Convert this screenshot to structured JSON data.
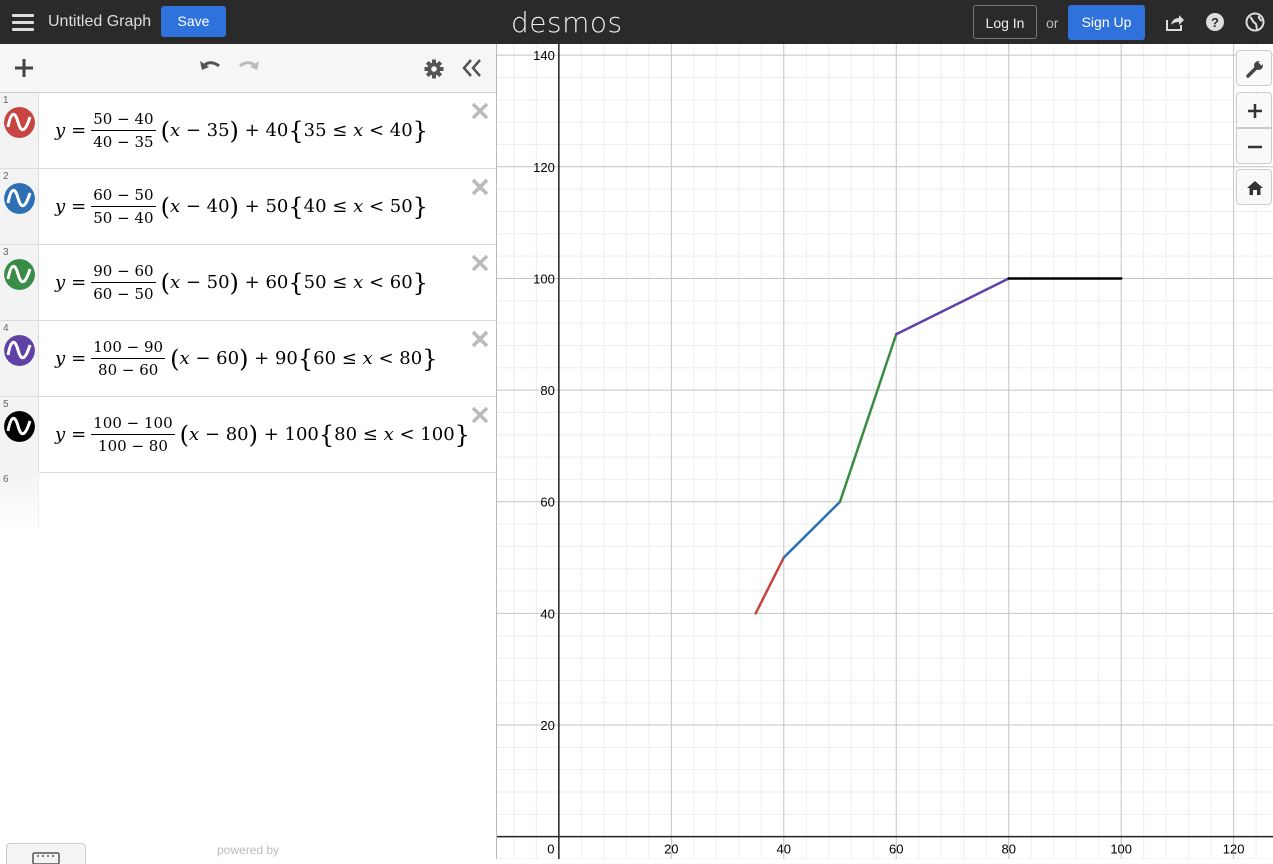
{
  "topbar": {
    "title": "Untitled Graph",
    "save_label": "Save",
    "logo": "desmos",
    "login_label": "Log In",
    "or_text": "or",
    "signup_label": "Sign Up"
  },
  "expressions": [
    {
      "index": "1",
      "color": "#c74440",
      "n1": "50",
      "n2": "40",
      "d1": "40",
      "d2": "35",
      "shift": "35",
      "offset": "40",
      "lo": "35",
      "hi": "40"
    },
    {
      "index": "2",
      "color": "#2d70b3",
      "n1": "60",
      "n2": "50",
      "d1": "50",
      "d2": "40",
      "shift": "40",
      "offset": "50",
      "lo": "40",
      "hi": "50"
    },
    {
      "index": "3",
      "color": "#388c46",
      "n1": "90",
      "n2": "60",
      "d1": "60",
      "d2": "50",
      "shift": "50",
      "offset": "60",
      "lo": "50",
      "hi": "60"
    },
    {
      "index": "4",
      "color": "#6042a6",
      "n1": "100",
      "n2": "90",
      "d1": "80",
      "d2": "60",
      "shift": "60",
      "offset": "90",
      "lo": "60",
      "hi": "80"
    },
    {
      "index": "5",
      "color": "#000000",
      "n1": "100",
      "n2": "100",
      "d1": "100",
      "d2": "80",
      "shift": "80",
      "offset": "100",
      "lo": "80",
      "hi": "100"
    }
  ],
  "empty_index": "6",
  "footer": {
    "powered_by": "powered by"
  },
  "chart_data": {
    "type": "line",
    "x_ticks": [
      "0",
      "20",
      "40",
      "60",
      "80",
      "100",
      "120"
    ],
    "y_ticks": [
      "20",
      "40",
      "60",
      "80",
      "100",
      "120",
      "140"
    ],
    "xlim": [
      -11,
      127
    ],
    "ylim": [
      -4,
      142
    ],
    "grid": true,
    "series": [
      {
        "color": "#c74440",
        "points": [
          [
            35,
            40
          ],
          [
            40,
            50
          ]
        ]
      },
      {
        "color": "#2d70b3",
        "points": [
          [
            40,
            50
          ],
          [
            50,
            60
          ]
        ]
      },
      {
        "color": "#388c46",
        "points": [
          [
            50,
            60
          ],
          [
            60,
            90
          ]
        ]
      },
      {
        "color": "#6042a6",
        "points": [
          [
            60,
            90
          ],
          [
            80,
            100
          ]
        ]
      },
      {
        "color": "#000000",
        "points": [
          [
            80,
            100
          ],
          [
            100,
            100
          ]
        ]
      }
    ]
  }
}
